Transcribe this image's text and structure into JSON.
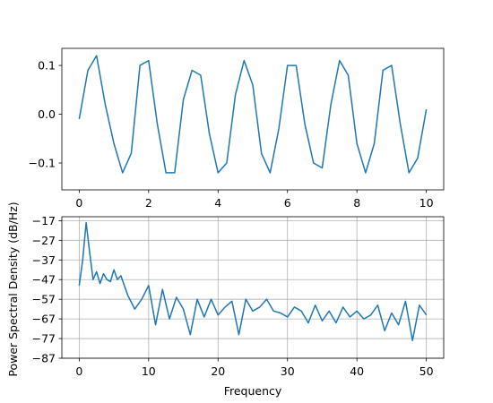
{
  "chart_data": [
    {
      "type": "line",
      "xlim": [
        -0.5,
        10.5
      ],
      "ylim": [
        -0.155,
        0.135
      ],
      "xticks": [
        0,
        2,
        4,
        6,
        8,
        10
      ],
      "xtick_labels": [
        "0",
        "2",
        "4",
        "6",
        "8",
        "10"
      ],
      "yticks": [
        0.1,
        0.0,
        -0.1
      ],
      "ytick_labels": [
        "0.1",
        "0.0",
        "−0.1"
      ],
      "grid": false,
      "series": [
        {
          "color": "#1f77b4",
          "x": [
            0,
            0.25,
            0.5,
            0.75,
            1.0,
            1.25,
            1.5,
            1.75,
            2.0,
            2.25,
            2.5,
            2.75,
            3.0,
            3.25,
            3.5,
            3.75,
            4.0,
            4.25,
            4.5,
            4.75,
            5.0,
            5.25,
            5.5,
            5.75,
            6.0,
            6.25,
            6.5,
            6.75,
            7.0,
            7.25,
            7.5,
            7.75,
            8.0,
            8.25,
            8.5,
            8.75,
            9.0,
            9.25,
            9.5,
            9.75,
            10.0
          ],
          "y": [
            -0.01,
            0.09,
            0.12,
            0.02,
            -0.06,
            -0.12,
            -0.08,
            0.1,
            0.11,
            -0.02,
            -0.12,
            -0.12,
            0.03,
            0.09,
            0.08,
            -0.04,
            -0.12,
            -0.1,
            0.04,
            0.11,
            0.06,
            -0.08,
            -0.12,
            -0.03,
            0.1,
            0.1,
            -0.02,
            -0.1,
            -0.11,
            0.02,
            0.11,
            0.08,
            -0.06,
            -0.12,
            -0.06,
            0.09,
            0.1,
            -0.02,
            -0.12,
            -0.09,
            0.01
          ]
        }
      ]
    },
    {
      "type": "line",
      "xlim": [
        -2.5,
        52.5
      ],
      "ylim": [
        -87,
        -15
      ],
      "xticks": [
        0,
        10,
        20,
        30,
        40,
        50
      ],
      "xtick_labels": [
        "0",
        "10",
        "20",
        "30",
        "40",
        "50"
      ],
      "yticks": [
        -17,
        -27,
        -37,
        -47,
        -57,
        -67,
        -77,
        -87
      ],
      "ytick_labels": [
        "−17",
        "−27",
        "−37",
        "−47",
        "−57",
        "−67",
        "−77",
        "−87"
      ],
      "xlabel": "Frequency",
      "ylabel": "Power Spectral Density (dB/Hz)",
      "grid": true,
      "series": [
        {
          "color": "#1f77b4",
          "x": [
            0,
            0.5,
            1.0,
            1.5,
            2.0,
            2.5,
            3.0,
            3.5,
            4.0,
            4.5,
            5.0,
            5.5,
            6.0,
            7.0,
            8.0,
            9.0,
            10.0,
            11.0,
            12.0,
            13.0,
            14.0,
            15.0,
            16.0,
            17.0,
            18.0,
            19.0,
            20.0,
            21.0,
            22.0,
            23.0,
            24.0,
            25.0,
            26.0,
            27.0,
            28.0,
            29.0,
            30.0,
            31.0,
            32.0,
            33.0,
            34.0,
            35.0,
            36.0,
            37.0,
            38.0,
            39.0,
            40.0,
            41.0,
            42.0,
            43.0,
            44.0,
            45.0,
            46.0,
            47.0,
            48.0,
            49.0,
            50.0
          ],
          "y": [
            -50,
            -37,
            -18,
            -33,
            -47,
            -43,
            -49,
            -44,
            -47,
            -48,
            -42,
            -47,
            -45,
            -55,
            -62,
            -57,
            -50,
            -70,
            -52,
            -67,
            -56,
            -62,
            -75,
            -57,
            -66,
            -57,
            -65,
            -61,
            -58,
            -75,
            -57,
            -63,
            -61,
            -57,
            -63,
            -64,
            -66,
            -61,
            -63,
            -69,
            -60,
            -68,
            -63,
            -69,
            -61,
            -66,
            -63,
            -67,
            -65,
            -60,
            -73,
            -64,
            -70,
            -58,
            -78,
            -60,
            -65
          ]
        }
      ]
    }
  ]
}
